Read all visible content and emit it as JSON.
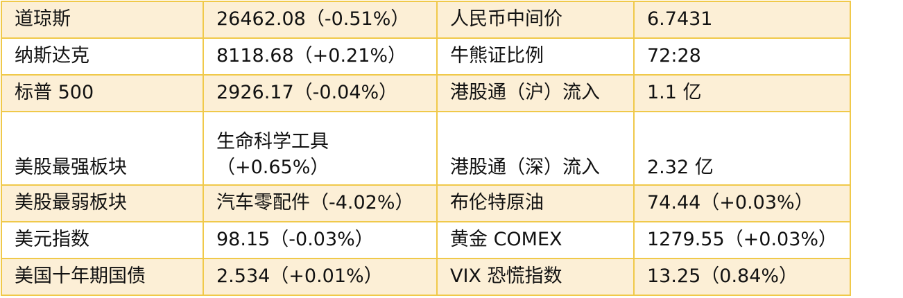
{
  "colors": {
    "row_fill": "#fcefd6",
    "border": "#f0c94a"
  },
  "rows": [
    {
      "label1": "道琼斯",
      "value1": "26462.08（-0.51%）",
      "label2": "人民币中间价",
      "value2": "6.7431"
    },
    {
      "label1": "纳斯达克",
      "value1": "8118.68（+0.21%）",
      "label2": "牛熊证比例",
      "value2": "72:28"
    },
    {
      "label1": "标普 500",
      "value1": "2926.17（-0.04%）",
      "label2": "港股通（沪）流入",
      "value2": "1.1 亿"
    },
    {
      "label1": "美股最强板块",
      "value1": "生命科学工具",
      "value1b": "（+0.65%）",
      "label2": "港股通（深）流入",
      "value2": "2.32 亿"
    },
    {
      "label1": "美股最弱板块",
      "value1": "汽车零配件（-4.02%）",
      "label2": "布伦特原油",
      "value2": "74.44（+0.03%）"
    },
    {
      "label1": "美元指数",
      "value1": "98.15（-0.03%）",
      "label2": "黄金 COMEX",
      "value2": "1279.55（+0.03%）"
    },
    {
      "label1": "美国十年期国债",
      "value1": "2.534（+0.01%）",
      "label2": "VIX 恐慌指数",
      "value2": "13.25（0.84%）"
    }
  ]
}
